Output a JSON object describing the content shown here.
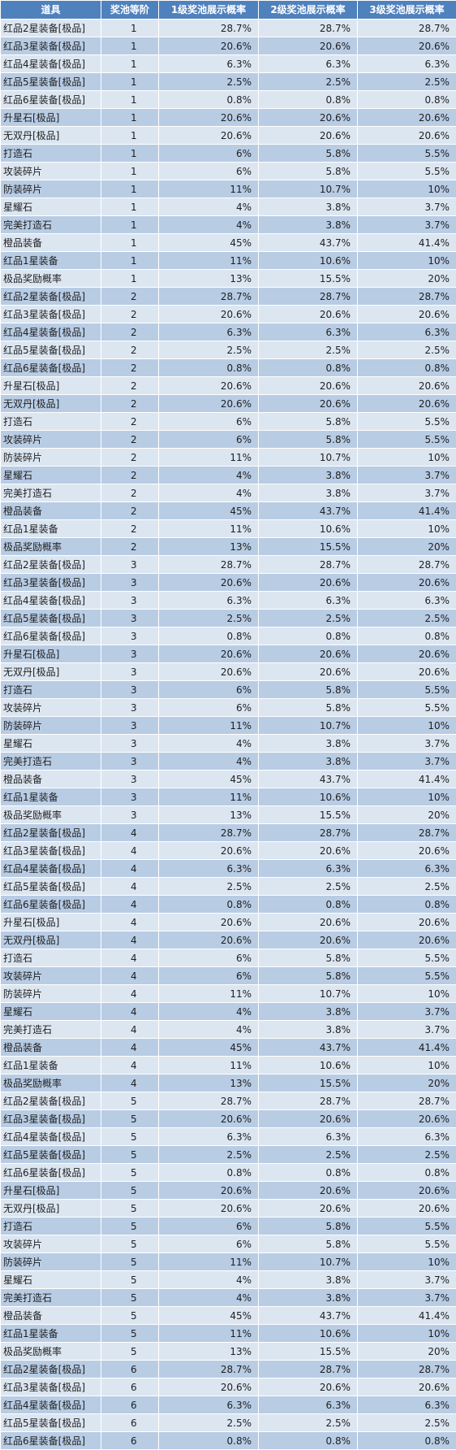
{
  "table": {
    "headers": [
      "道具",
      "奖池等阶",
      "1级奖池展示概率",
      "2级奖池展示概率",
      "3级奖池展示概率"
    ],
    "rows": [
      [
        "红品2星装备[极品]",
        "1",
        "28.7%",
        "28.7%",
        "28.7%"
      ],
      [
        "红品3星装备[极品]",
        "1",
        "20.6%",
        "20.6%",
        "20.6%"
      ],
      [
        "红品4星装备[极品]",
        "1",
        "6.3%",
        "6.3%",
        "6.3%"
      ],
      [
        "红品5星装备[极品]",
        "1",
        "2.5%",
        "2.5%",
        "2.5%"
      ],
      [
        "红品6星装备[极品]",
        "1",
        "0.8%",
        "0.8%",
        "0.8%"
      ],
      [
        "升星石[极品]",
        "1",
        "20.6%",
        "20.6%",
        "20.6%"
      ],
      [
        "无双丹[极品]",
        "1",
        "20.6%",
        "20.6%",
        "20.6%"
      ],
      [
        "打造石",
        "1",
        "6%",
        "5.8%",
        "5.5%"
      ],
      [
        "攻装碎片",
        "1",
        "6%",
        "5.8%",
        "5.5%"
      ],
      [
        "防装碎片",
        "1",
        "11%",
        "10.7%",
        "10%"
      ],
      [
        "星耀石",
        "1",
        "4%",
        "3.8%",
        "3.7%"
      ],
      [
        "完美打造石",
        "1",
        "4%",
        "3.8%",
        "3.7%"
      ],
      [
        "橙品装备",
        "1",
        "45%",
        "43.7%",
        "41.4%"
      ],
      [
        "红品1星装备",
        "1",
        "11%",
        "10.6%",
        "10%"
      ],
      [
        "极品奖励概率",
        "1",
        "13%",
        "15.5%",
        "20%"
      ],
      [
        "红品2星装备[极品]",
        "2",
        "28.7%",
        "28.7%",
        "28.7%"
      ],
      [
        "红品3星装备[极品]",
        "2",
        "20.6%",
        "20.6%",
        "20.6%"
      ],
      [
        "红品4星装备[极品]",
        "2",
        "6.3%",
        "6.3%",
        "6.3%"
      ],
      [
        "红品5星装备[极品]",
        "2",
        "2.5%",
        "2.5%",
        "2.5%"
      ],
      [
        "红品6星装备[极品]",
        "2",
        "0.8%",
        "0.8%",
        "0.8%"
      ],
      [
        "升星石[极品]",
        "2",
        "20.6%",
        "20.6%",
        "20.6%"
      ],
      [
        "无双丹[极品]",
        "2",
        "20.6%",
        "20.6%",
        "20.6%"
      ],
      [
        "打造石",
        "2",
        "6%",
        "5.8%",
        "5.5%"
      ],
      [
        "攻装碎片",
        "2",
        "6%",
        "5.8%",
        "5.5%"
      ],
      [
        "防装碎片",
        "2",
        "11%",
        "10.7%",
        "10%"
      ],
      [
        "星耀石",
        "2",
        "4%",
        "3.8%",
        "3.7%"
      ],
      [
        "完美打造石",
        "2",
        "4%",
        "3.8%",
        "3.7%"
      ],
      [
        "橙品装备",
        "2",
        "45%",
        "43.7%",
        "41.4%"
      ],
      [
        "红品1星装备",
        "2",
        "11%",
        "10.6%",
        "10%"
      ],
      [
        "极品奖励概率",
        "2",
        "13%",
        "15.5%",
        "20%"
      ],
      [
        "红品2星装备[极品]",
        "3",
        "28.7%",
        "28.7%",
        "28.7%"
      ],
      [
        "红品3星装备[极品]",
        "3",
        "20.6%",
        "20.6%",
        "20.6%"
      ],
      [
        "红品4星装备[极品]",
        "3",
        "6.3%",
        "6.3%",
        "6.3%"
      ],
      [
        "红品5星装备[极品]",
        "3",
        "2.5%",
        "2.5%",
        "2.5%"
      ],
      [
        "红品6星装备[极品]",
        "3",
        "0.8%",
        "0.8%",
        "0.8%"
      ],
      [
        "升星石[极品]",
        "3",
        "20.6%",
        "20.6%",
        "20.6%"
      ],
      [
        "无双丹[极品]",
        "3",
        "20.6%",
        "20.6%",
        "20.6%"
      ],
      [
        "打造石",
        "3",
        "6%",
        "5.8%",
        "5.5%"
      ],
      [
        "攻装碎片",
        "3",
        "6%",
        "5.8%",
        "5.5%"
      ],
      [
        "防装碎片",
        "3",
        "11%",
        "10.7%",
        "10%"
      ],
      [
        "星耀石",
        "3",
        "4%",
        "3.8%",
        "3.7%"
      ],
      [
        "完美打造石",
        "3",
        "4%",
        "3.8%",
        "3.7%"
      ],
      [
        "橙品装备",
        "3",
        "45%",
        "43.7%",
        "41.4%"
      ],
      [
        "红品1星装备",
        "3",
        "11%",
        "10.6%",
        "10%"
      ],
      [
        "极品奖励概率",
        "3",
        "13%",
        "15.5%",
        "20%"
      ],
      [
        "红品2星装备[极品]",
        "4",
        "28.7%",
        "28.7%",
        "28.7%"
      ],
      [
        "红品3星装备[极品]",
        "4",
        "20.6%",
        "20.6%",
        "20.6%"
      ],
      [
        "红品4星装备[极品]",
        "4",
        "6.3%",
        "6.3%",
        "6.3%"
      ],
      [
        "红品5星装备[极品]",
        "4",
        "2.5%",
        "2.5%",
        "2.5%"
      ],
      [
        "红品6星装备[极品]",
        "4",
        "0.8%",
        "0.8%",
        "0.8%"
      ],
      [
        "升星石[极品]",
        "4",
        "20.6%",
        "20.6%",
        "20.6%"
      ],
      [
        "无双丹[极品]",
        "4",
        "20.6%",
        "20.6%",
        "20.6%"
      ],
      [
        "打造石",
        "4",
        "6%",
        "5.8%",
        "5.5%"
      ],
      [
        "攻装碎片",
        "4",
        "6%",
        "5.8%",
        "5.5%"
      ],
      [
        "防装碎片",
        "4",
        "11%",
        "10.7%",
        "10%"
      ],
      [
        "星耀石",
        "4",
        "4%",
        "3.8%",
        "3.7%"
      ],
      [
        "完美打造石",
        "4",
        "4%",
        "3.8%",
        "3.7%"
      ],
      [
        "橙品装备",
        "4",
        "45%",
        "43.7%",
        "41.4%"
      ],
      [
        "红品1星装备",
        "4",
        "11%",
        "10.6%",
        "10%"
      ],
      [
        "极品奖励概率",
        "4",
        "13%",
        "15.5%",
        "20%"
      ],
      [
        "红品2星装备[极品]",
        "5",
        "28.7%",
        "28.7%",
        "28.7%"
      ],
      [
        "红品3星装备[极品]",
        "5",
        "20.6%",
        "20.6%",
        "20.6%"
      ],
      [
        "红品4星装备[极品]",
        "5",
        "6.3%",
        "6.3%",
        "6.3%"
      ],
      [
        "红品5星装备[极品]",
        "5",
        "2.5%",
        "2.5%",
        "2.5%"
      ],
      [
        "红品6星装备[极品]",
        "5",
        "0.8%",
        "0.8%",
        "0.8%"
      ],
      [
        "升星石[极品]",
        "5",
        "20.6%",
        "20.6%",
        "20.6%"
      ],
      [
        "无双丹[极品]",
        "5",
        "20.6%",
        "20.6%",
        "20.6%"
      ],
      [
        "打造石",
        "5",
        "6%",
        "5.8%",
        "5.5%"
      ],
      [
        "攻装碎片",
        "5",
        "6%",
        "5.8%",
        "5.5%"
      ],
      [
        "防装碎片",
        "5",
        "11%",
        "10.7%",
        "10%"
      ],
      [
        "星耀石",
        "5",
        "4%",
        "3.8%",
        "3.7%"
      ],
      [
        "完美打造石",
        "5",
        "4%",
        "3.8%",
        "3.7%"
      ],
      [
        "橙品装备",
        "5",
        "45%",
        "43.7%",
        "41.4%"
      ],
      [
        "红品1星装备",
        "5",
        "11%",
        "10.6%",
        "10%"
      ],
      [
        "极品奖励概率",
        "5",
        "13%",
        "15.5%",
        "20%"
      ],
      [
        "红品2星装备[极品]",
        "6",
        "28.7%",
        "28.7%",
        "28.7%"
      ],
      [
        "红品3星装备[极品]",
        "6",
        "20.6%",
        "20.6%",
        "20.6%"
      ],
      [
        "红品4星装备[极品]",
        "6",
        "6.3%",
        "6.3%",
        "6.3%"
      ],
      [
        "红品5星装备[极品]",
        "6",
        "2.5%",
        "2.5%",
        "2.5%"
      ],
      [
        "红品6星装备[极品]",
        "6",
        "0.8%",
        "0.8%",
        "0.8%"
      ]
    ]
  },
  "colors": {
    "header_bg": "#4f81bd",
    "header_text": "#ffffff",
    "row_light": "#dce6f1",
    "row_dark": "#b8cce4"
  }
}
